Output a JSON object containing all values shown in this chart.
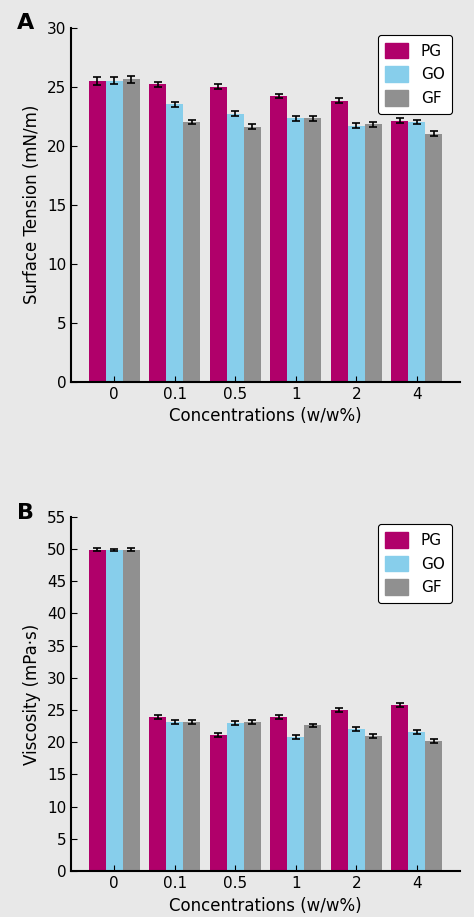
{
  "panel_A": {
    "title": "A",
    "ylabel": "Surface Tension (mN/m)",
    "xlabel": "Concentrations (w/w%)",
    "categories": [
      "0",
      "0.1",
      "0.5",
      "1",
      "2",
      "4"
    ],
    "PG": [
      25.5,
      25.2,
      25.0,
      24.2,
      23.8,
      22.1
    ],
    "GO": [
      25.5,
      23.5,
      22.7,
      22.3,
      21.7,
      22.0
    ],
    "GF": [
      25.6,
      22.0,
      21.6,
      22.3,
      21.8,
      21.0
    ],
    "PG_err": [
      0.35,
      0.2,
      0.2,
      0.2,
      0.2,
      0.2
    ],
    "GO_err": [
      0.3,
      0.2,
      0.2,
      0.2,
      0.2,
      0.2
    ],
    "GF_err": [
      0.3,
      0.2,
      0.2,
      0.2,
      0.2,
      0.2
    ],
    "ylim": [
      0,
      30
    ],
    "yticks": [
      0,
      5,
      10,
      15,
      20,
      25,
      30
    ]
  },
  "panel_B": {
    "title": "B",
    "ylabel": "Viscosity (mPa·s)",
    "xlabel": "Concentrations (w/w%)",
    "categories": [
      "0",
      "0.1",
      "0.5",
      "1",
      "2",
      "4"
    ],
    "PG": [
      49.9,
      23.9,
      21.1,
      23.9,
      25.0,
      25.8
    ],
    "GO": [
      49.8,
      23.1,
      23.0,
      20.8,
      22.0,
      21.6
    ],
    "GF": [
      49.9,
      23.1,
      23.2,
      22.6,
      21.0,
      20.2
    ],
    "PG_err": [
      0.2,
      0.3,
      0.3,
      0.3,
      0.3,
      0.3
    ],
    "GO_err": [
      0.2,
      0.3,
      0.3,
      0.3,
      0.3,
      0.3
    ],
    "GF_err": [
      0.2,
      0.3,
      0.3,
      0.3,
      0.3,
      0.3
    ],
    "ylim": [
      0,
      55
    ],
    "yticks": [
      0,
      5,
      10,
      15,
      20,
      25,
      30,
      35,
      40,
      45,
      50,
      55
    ]
  },
  "colors": {
    "PG": "#B0006A",
    "GO": "#87CEEB",
    "GF": "#909090"
  },
  "bar_width": 0.28,
  "background_color": "#E8E8E8",
  "edge_color": "none",
  "fig_bg": "#E8E8E8"
}
